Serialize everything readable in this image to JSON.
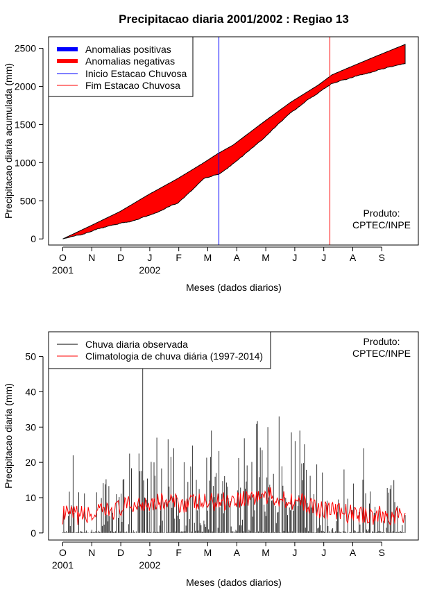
{
  "title": "Precipitacao diaria 2001/2002 : Regiao 13",
  "chart_data": [
    {
      "type": "area",
      "ylabel": "Precipitacao diaria acumulada (mm)",
      "xlabel": "Meses (dados diarios)",
      "ylim": [
        -80,
        2650
      ],
      "yticks": [
        0,
        500,
        1000,
        1500,
        2000,
        2500
      ],
      "months": [
        "O",
        "N",
        "D",
        "J",
        "F",
        "M",
        "A",
        "M",
        "J",
        "J",
        "A",
        "S"
      ],
      "year_labels": [
        {
          "label": "2001",
          "month_index": 0
        },
        {
          "label": "2002",
          "month_index": 3
        }
      ],
      "legend": [
        {
          "label": "Anomalias positivas",
          "color": "#0000ff",
          "style": "thick"
        },
        {
          "label": "Anomalias negativas",
          "color": "#ff0000",
          "style": "thick"
        },
        {
          "label": "Inicio Estacao Chuvosa",
          "color": "#0000ff",
          "style": "thin"
        },
        {
          "label": "Fim Estacao Chuvosa",
          "color": "#ff0000",
          "style": "thin"
        }
      ],
      "product_label": [
        "Produto:",
        "CPTEC/INPE"
      ],
      "day_index_approx": [
        0,
        30,
        61,
        91,
        122,
        150,
        165,
        181,
        211,
        242,
        272,
        286,
        303,
        334,
        364
      ],
      "climatology_cumulative": [
        0,
        175,
        360,
        580,
        790,
        1000,
        1120,
        1230,
        1510,
        1790,
        2020,
        2150,
        2240,
        2400,
        2550
      ],
      "observed_cumulative": [
        0,
        100,
        200,
        310,
        480,
        780,
        850,
        990,
        1280,
        1650,
        1930,
        2050,
        2110,
        2200,
        2300
      ],
      "rainy_season_start_day": 166,
      "rainy_season_end_day": 284,
      "rainy_season_start_color": "#0000ff",
      "rainy_season_end_color": "#ff0000"
    },
    {
      "type": "line",
      "ylabel": "Precipitacao diaria (mm)",
      "xlabel": "Meses (dados diarios)",
      "ylim": [
        -2,
        57
      ],
      "yticks": [
        0,
        10,
        20,
        30,
        40,
        50
      ],
      "months": [
        "O",
        "N",
        "D",
        "J",
        "F",
        "M",
        "A",
        "M",
        "J",
        "J",
        "A",
        "S"
      ],
      "year_labels": [
        {
          "label": "2001",
          "month_index": 0
        },
        {
          "label": "2002",
          "month_index": 3
        }
      ],
      "legend": [
        {
          "label": "Chuva diaria observada",
          "color": "#000000"
        },
        {
          "label": "Climatologia de chuva diária (1997-2014)",
          "color": "#ff0000"
        }
      ],
      "product_label": [
        "Produto:",
        "CPTEC/INPE"
      ],
      "notable_observed_peaks": [
        {
          "day": 11,
          "value": 22
        },
        {
          "day": 81,
          "value": 22.5
        },
        {
          "day": 85,
          "value": 47
        },
        {
          "day": 100,
          "value": 27
        },
        {
          "day": 118,
          "value": 24
        },
        {
          "day": 158,
          "value": 29
        },
        {
          "day": 218,
          "value": 30
        },
        {
          "day": 230,
          "value": 33
        },
        {
          "day": 252,
          "value": 29
        },
        {
          "day": 320,
          "value": 24
        }
      ],
      "climatology_approx": [
        {
          "day": 0,
          "value": 5
        },
        {
          "day": 30,
          "value": 5
        },
        {
          "day": 61,
          "value": 7
        },
        {
          "day": 91,
          "value": 9
        },
        {
          "day": 122,
          "value": 8.5
        },
        {
          "day": 150,
          "value": 8.5
        },
        {
          "day": 181,
          "value": 9.5
        },
        {
          "day": 211,
          "value": 10.5
        },
        {
          "day": 242,
          "value": 9.5
        },
        {
          "day": 272,
          "value": 7
        },
        {
          "day": 303,
          "value": 5.5
        },
        {
          "day": 334,
          "value": 5
        },
        {
          "day": 364,
          "value": 4.5
        }
      ]
    }
  ]
}
